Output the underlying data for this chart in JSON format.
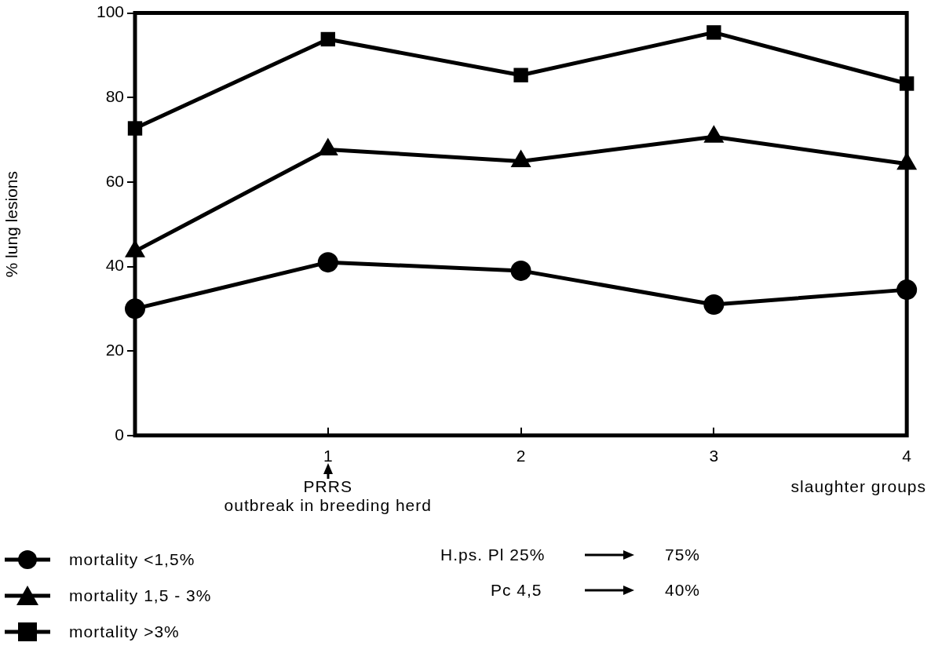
{
  "chart_data": {
    "type": "line",
    "ylabel": "% lung lesions",
    "xlabel": "slaughter groups",
    "categories": [
      null,
      "1",
      "2",
      "3",
      "4"
    ],
    "ylim": [
      0,
      100
    ],
    "yticks": [
      0,
      20,
      40,
      60,
      80,
      100
    ],
    "grid": false,
    "legend": "bottom left",
    "line_style": "solid",
    "series": [
      {
        "name": "mortality <1,5%",
        "color": "#000000",
        "marker": "circle",
        "values": [
          30,
          41,
          39,
          31,
          34.5
        ]
      },
      {
        "name": "mortality 1,5 - 3%",
        "color": "#000000",
        "marker": "triangle",
        "values": [
          43.6,
          67.7,
          64.9,
          70.7,
          64.3
        ]
      },
      {
        "name": "mortality >3%",
        "color": "#000000",
        "marker": "square",
        "values": [
          72.7,
          93.8,
          85.3,
          95.4,
          83.3
        ]
      }
    ],
    "annotations": [
      "PRRS",
      "outbreak in breeding herd",
      "H.ps. Pl 25%",
      "75%",
      "Pc 4,5",
      "40%"
    ]
  }
}
